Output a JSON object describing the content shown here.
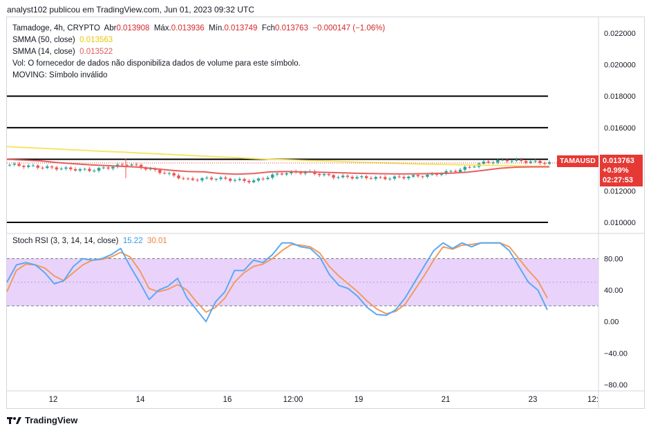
{
  "caption": "analyst102 publicou em TradingView.com, Jun 01, 2023 09:32 UTC",
  "legend": {
    "symbol_line": "Tamadoge, 4h, CRYPTO",
    "open_label": "Abr",
    "open_value": "0.013908",
    "high_label": "Máx.",
    "high_value": "0.013936",
    "low_label": "Mín.",
    "low_value": "0.013749",
    "close_label": "Fch",
    "close_value": "0.013763",
    "change_value": "−0.000147 (−1.06%)",
    "sma50_label": "SMMA (50, close)",
    "sma50_value": "0.013563",
    "sma14_label": "SMMA (14, close)",
    "sma14_value": "0.013522",
    "vol_text": "Vol: O fornecedor de dados não disponibiliza dados de volume para este símbolo.",
    "moving_text": "MOVING: Símbolo inválido",
    "stoch_label": "Stoch RSI (3, 3, 14, 14, close)",
    "stoch_k": "15.22",
    "stoch_d": "30.01"
  },
  "price_label": {
    "ticker": "TAMAUSD",
    "price": "0.013763",
    "change": "+0.99%",
    "countdown": "02:27:53"
  },
  "footer": {
    "brand": "TradingView"
  },
  "colors": {
    "up": "#26a69a",
    "down": "#ef5350",
    "sma50": "#f5e663",
    "sma14": "#e85d5d",
    "stoch_k": "#5aa9f0",
    "stoch_d": "#f29a5e",
    "band_fill": "#e9d3fb",
    "price_tag": "#e53935"
  },
  "chart_data": [
    {
      "type": "candlestick",
      "y_axis_ticks": [
        "0.022000",
        "0.020000",
        "0.018000",
        "0.016000",
        "0.014000",
        "0.012000",
        "0.010000"
      ],
      "ylim": [
        0.0093,
        0.023
      ],
      "x_ticks": [
        "12",
        "14",
        "16",
        "12:00",
        "19",
        "21",
        "23",
        "12:"
      ],
      "horizontal_levels": [
        0.018,
        0.016,
        0.014,
        0.01
      ],
      "series": [
        {
          "name": "SMMA (50, close)",
          "values": [
            0.0148,
            0.01475,
            0.0147,
            0.01465,
            0.0146,
            0.01455,
            0.0145,
            0.01445,
            0.0144,
            0.01435,
            0.0143,
            0.01425,
            0.0142,
            0.01415,
            0.0141,
            0.01405,
            0.014,
            0.01397,
            0.01393,
            0.0139,
            0.01387,
            0.01383,
            0.0138,
            0.01377,
            0.01373,
            0.0137,
            0.01368,
            0.01366,
            0.01364,
            0.01362,
            0.0136,
            0.01358,
            0.01356,
            0.01356
          ]
        },
        {
          "name": "SMMA (14, close)",
          "values": [
            0.014,
            0.01395,
            0.0139,
            0.0138,
            0.01372,
            0.01365,
            0.0136,
            0.01355,
            0.0135,
            0.0134,
            0.0133,
            0.01322,
            0.0132,
            0.0131,
            0.01305,
            0.0131,
            0.0132,
            0.01322,
            0.0132,
            0.01318,
            0.01315,
            0.01312,
            0.0131,
            0.01308,
            0.01307,
            0.01308,
            0.0131,
            0.01312,
            0.01318,
            0.0133,
            0.01343,
            0.0135,
            0.01352,
            0.01352
          ]
        }
      ],
      "last_close": 0.013763
    },
    {
      "type": "line",
      "title": "Stoch RSI (3, 3, 14, 14, close)",
      "y_axis_ticks": [
        "80.00",
        "40.00",
        "0.00",
        "−40.00",
        "−80.00"
      ],
      "ylim": [
        -88,
        112
      ],
      "bands": [
        80,
        20
      ],
      "series": [
        {
          "name": "K",
          "values": [
            50,
            72,
            75,
            72,
            62,
            48,
            52,
            70,
            80,
            78,
            80,
            85,
            93,
            70,
            50,
            28,
            40,
            45,
            55,
            30,
            15,
            0,
            25,
            38,
            65,
            65,
            78,
            75,
            85,
            100,
            100,
            95,
            93,
            82,
            60,
            46,
            42,
            32,
            18,
            9,
            8,
            15,
            30,
            50,
            70,
            90,
            100,
            93,
            100,
            95,
            100,
            100,
            100,
            90,
            70,
            50,
            40,
            15
          ]
        },
        {
          "name": "D",
          "values": [
            38,
            65,
            73,
            72,
            68,
            58,
            52,
            62,
            72,
            78,
            79,
            82,
            88,
            82,
            65,
            42,
            38,
            41,
            47,
            40,
            25,
            12,
            18,
            30,
            50,
            62,
            70,
            73,
            80,
            90,
            98,
            97,
            95,
            87,
            70,
            58,
            48,
            38,
            26,
            16,
            10,
            13,
            22,
            40,
            58,
            78,
            95,
            92,
            97,
            98,
            100,
            100,
            100,
            95,
            80,
            65,
            52,
            30
          ]
        }
      ]
    }
  ]
}
